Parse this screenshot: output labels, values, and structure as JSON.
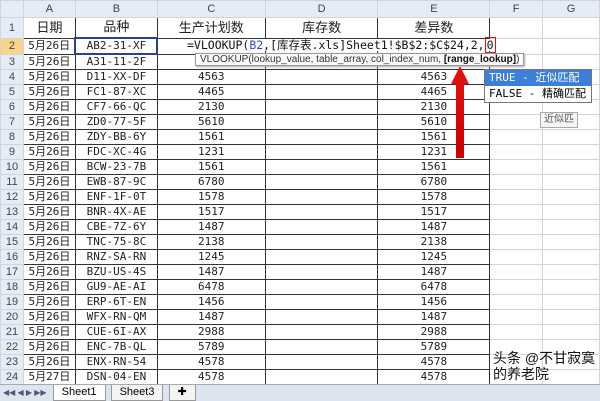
{
  "columns": [
    "A",
    "B",
    "C",
    "D",
    "E",
    "F",
    "G"
  ],
  "headers": {
    "date": "日期",
    "product": "品种",
    "planned": "生产计划数",
    "stock": "库存数",
    "diff": "差异数"
  },
  "rows": [
    {
      "n": "2",
      "date": "5月26日",
      "product": "AB2-31-XF",
      "planned": "",
      "diff": ""
    },
    {
      "n": "3",
      "date": "5月26日",
      "product": "A31-11-2F",
      "planned": "",
      "diff": ""
    },
    {
      "n": "4",
      "date": "5月26日",
      "product": "D11-XX-DF",
      "planned": "4563",
      "diff": "4563"
    },
    {
      "n": "5",
      "date": "5月26日",
      "product": "FC1-87-XC",
      "planned": "4465",
      "diff": "4465"
    },
    {
      "n": "6",
      "date": "5月26日",
      "product": "CF7-66-QC",
      "planned": "2130",
      "diff": "2130"
    },
    {
      "n": "7",
      "date": "5月26日",
      "product": "ZD0-77-5F",
      "planned": "5610",
      "diff": "5610"
    },
    {
      "n": "8",
      "date": "5月26日",
      "product": "ZDY-BB-6Y",
      "planned": "1561",
      "diff": "1561"
    },
    {
      "n": "9",
      "date": "5月26日",
      "product": "FDC-XC-4G",
      "planned": "1231",
      "diff": "1231"
    },
    {
      "n": "10",
      "date": "5月26日",
      "product": "BCW-23-7B",
      "planned": "1561",
      "diff": "1561"
    },
    {
      "n": "11",
      "date": "5月26日",
      "product": "EWB-87-9C",
      "planned": "6780",
      "diff": "6780"
    },
    {
      "n": "12",
      "date": "5月26日",
      "product": "ENF-1F-0T",
      "planned": "1578",
      "diff": "1578"
    },
    {
      "n": "13",
      "date": "5月26日",
      "product": "BNR-4X-AE",
      "planned": "1517",
      "diff": "1517"
    },
    {
      "n": "14",
      "date": "5月26日",
      "product": "CBE-7Z-6Y",
      "planned": "1487",
      "diff": "1487"
    },
    {
      "n": "15",
      "date": "5月26日",
      "product": "TNC-75-8C",
      "planned": "2138",
      "diff": "2138"
    },
    {
      "n": "16",
      "date": "5月26日",
      "product": "RNZ-SA-RN",
      "planned": "1245",
      "diff": "1245"
    },
    {
      "n": "17",
      "date": "5月26日",
      "product": "BZU-US-4S",
      "planned": "1487",
      "diff": "1487"
    },
    {
      "n": "18",
      "date": "5月26日",
      "product": "GU9-AE-AI",
      "planned": "6478",
      "diff": "6478"
    },
    {
      "n": "19",
      "date": "5月26日",
      "product": "ERP-6T-EN",
      "planned": "1456",
      "diff": "1456"
    },
    {
      "n": "20",
      "date": "5月26日",
      "product": "WFX-RN-QM",
      "planned": "1487",
      "diff": "1487"
    },
    {
      "n": "21",
      "date": "5月26日",
      "product": "CUE-6I-AX",
      "planned": "2988",
      "diff": "2988"
    },
    {
      "n": "22",
      "date": "5月26日",
      "product": "ENC-7B-QL",
      "planned": "5789",
      "diff": "5789"
    },
    {
      "n": "23",
      "date": "5月26日",
      "product": "ENX-RN-54",
      "planned": "4578",
      "diff": "4578"
    },
    {
      "n": "24",
      "date": "5月27日",
      "product": "DSN-04-EN",
      "planned": "4578",
      "diff": "4578"
    }
  ],
  "formula": {
    "prefix": "=VLOOKUP(",
    "ref": "B2",
    "middle": ",[库存表.xls]Sheet1!$B$2:$C$24,2,",
    "highlight": "0"
  },
  "tooltip": {
    "text": "VLOOKUP(lookup_value, table_array, col_index_num, ",
    "bold": "[range_lookup]",
    "end": ")"
  },
  "autocomplete": [
    {
      "label": "TRUE - 近似匹配",
      "selected": true
    },
    {
      "label": "FALSE - 精确匹配",
      "selected": false
    }
  ],
  "side_tip": "近似匹",
  "sheet_tabs": [
    "Sheet1",
    "Sheet3"
  ],
  "watermark": "头条 @不甘寂寞的养老院",
  "colors": {
    "accent": "#e01010",
    "selection": "#2a3e9a",
    "header": "#e4ecf7"
  }
}
